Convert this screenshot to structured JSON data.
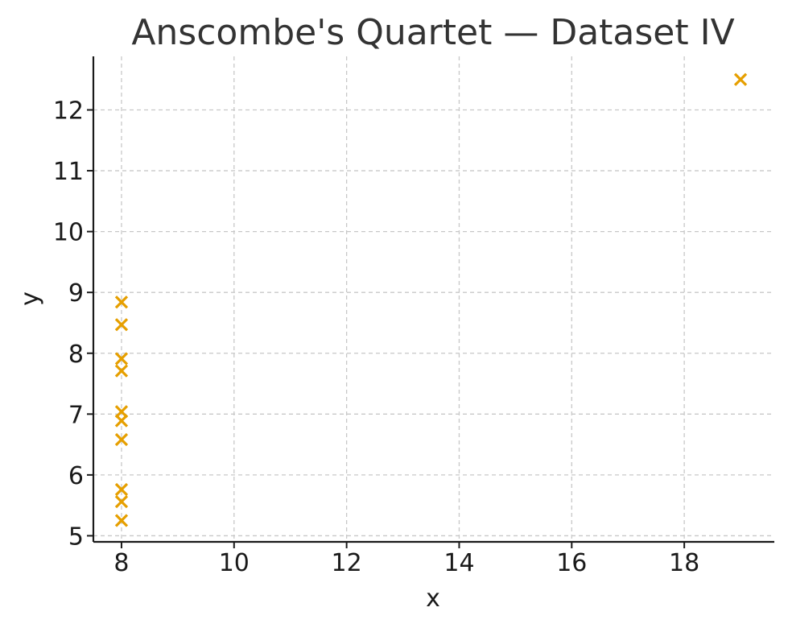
{
  "chart_data": {
    "type": "scatter",
    "title": "Anscombe's Quartet — Dataset IV",
    "xlabel": "x",
    "ylabel": "y",
    "xlim": [
      7.5,
      19.6
    ],
    "ylim": [
      4.9,
      12.88
    ],
    "xticks": [
      8,
      10,
      12,
      14,
      16,
      18
    ],
    "yticks": [
      5,
      6,
      7,
      8,
      9,
      10,
      11,
      12
    ],
    "grid": true,
    "marker": "x",
    "marker_color": "#E69F00",
    "series": [
      {
        "points": [
          {
            "x": 8,
            "y": 6.58
          },
          {
            "x": 8,
            "y": 5.76
          },
          {
            "x": 8,
            "y": 7.71
          },
          {
            "x": 8,
            "y": 8.84
          },
          {
            "x": 8,
            "y": 8.47
          },
          {
            "x": 8,
            "y": 7.04
          },
          {
            "x": 8,
            "y": 5.25
          },
          {
            "x": 19,
            "y": 12.5
          },
          {
            "x": 8,
            "y": 5.56
          },
          {
            "x": 8,
            "y": 7.91
          },
          {
            "x": 8,
            "y": 6.89
          }
        ]
      }
    ]
  }
}
